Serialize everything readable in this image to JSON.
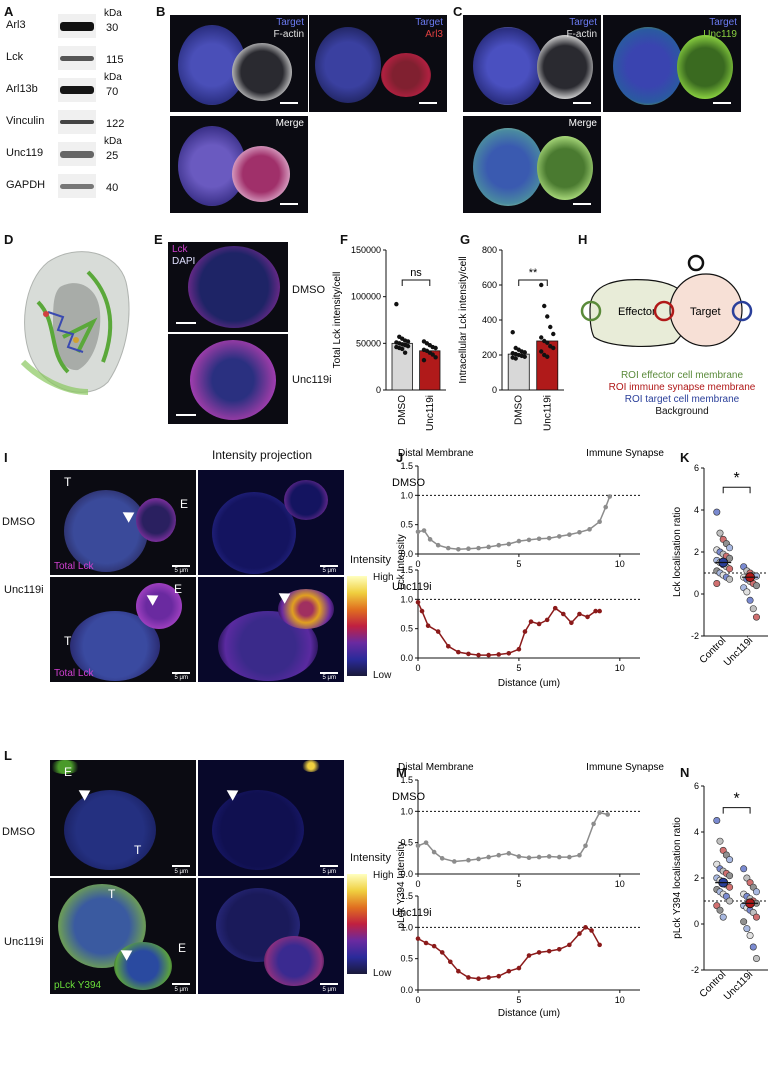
{
  "panels": {
    "A": "A",
    "B": "B",
    "C": "C",
    "D": "D",
    "E": "E",
    "F": "F",
    "G": "G",
    "H": "H",
    "I": "I",
    "J": "J",
    "K": "K",
    "L": "L",
    "M": "M",
    "N": "N"
  },
  "blot": {
    "rows": [
      {
        "label": "Arl3",
        "unit": "kDa",
        "kda": "30"
      },
      {
        "label": "Lck",
        "unit": "",
        "kda": "115"
      },
      {
        "label": "Arl13b",
        "unit": "kDa",
        "kda": "70"
      },
      {
        "label": "Vinculin",
        "unit": "",
        "kda": "122"
      },
      {
        "label": "Unc119",
        "unit": "kDa",
        "kda": "25"
      },
      {
        "label": "GAPDH",
        "unit": "",
        "kda": "40"
      }
    ]
  },
  "panelB": {
    "target": "Target",
    "factin": "F-actin",
    "arl3": "Arl3",
    "merge": "Merge"
  },
  "panelC": {
    "target": "Target",
    "factin": "F-actin",
    "unc119": "Unc119",
    "merge": "Merge"
  },
  "panelE": {
    "lck": "Lck",
    "dapi": "DAPI",
    "dmso": "DMSO",
    "unc": "Unc119i"
  },
  "panelH": {
    "effector": "Effector",
    "target": "Target",
    "legend": [
      {
        "text": "ROI effector cell membrane",
        "color": "#5a8a3a"
      },
      {
        "text": "ROI immune synapse membrane",
        "color": "#b01818"
      },
      {
        "text": "ROI target cell membrane",
        "color": "#2a3f9a"
      },
      {
        "text": "Background",
        "color": "#111111"
      }
    ]
  },
  "panelI": {
    "title": "Intensity projection",
    "dmso": "DMSO",
    "unc": "Unc119i",
    "T": "T",
    "E": "E",
    "totalLck": "Total Lck",
    "scale": "5 μm",
    "intensity": "Intensity",
    "high": "High",
    "low": "Low"
  },
  "panelL": {
    "dmso": "DMSO",
    "unc": "Unc119i",
    "T": "T",
    "E": "E",
    "plck": "pLck Y394",
    "scale": "5 μm",
    "intensity": "Intensity",
    "high": "High",
    "low": "Low"
  },
  "colors": {
    "dmso": "#8c8c8c",
    "unc": "#8b1a1a",
    "lck": "#c040c0",
    "plck": "#5fbf3a"
  },
  "chart_data": [
    {
      "panel": "F",
      "type": "bar",
      "categories": [
        "DMSO",
        "Unc119i"
      ],
      "values": [
        50000,
        42000
      ],
      "ylabel": "Total Lck intensity/cell",
      "ylim": [
        0,
        150000
      ],
      "yticks": [
        "0",
        "50000",
        "100000",
        "150000"
      ],
      "significance": "ns",
      "points": {
        "DMSO": [
          92000,
          57000,
          55000,
          53000,
          52000,
          51000,
          50000,
          49000,
          48000,
          47000,
          46000,
          45000,
          44000,
          40000
        ],
        "Unc119i": [
          52000,
          50000,
          48000,
          46000,
          45000,
          43000,
          42000,
          40000,
          38000,
          35000,
          32000
        ]
      }
    },
    {
      "panel": "G",
      "type": "bar",
      "categories": [
        "DMSO",
        "Unc119i"
      ],
      "values": [
        205,
        280
      ],
      "ylabel": "Intracellular Lck intensity/cell",
      "ylim": [
        0,
        800
      ],
      "yticks": [
        "0",
        "200",
        "400",
        "600",
        "800"
      ],
      "significance": "**",
      "points": {
        "DMSO": [
          330,
          240,
          230,
          220,
          215,
          210,
          205,
          200,
          195,
          190,
          185,
          180
        ],
        "Unc119i": [
          600,
          480,
          420,
          360,
          320,
          300,
          280,
          270,
          250,
          240,
          220,
          200,
          190
        ]
      }
    },
    {
      "panel": "J",
      "type": "line",
      "header": [
        "Distal Membrane",
        "Immune Synapse"
      ],
      "xlabel": "Distance (um)",
      "ylabel": "Lck Intensity",
      "xlim": [
        0,
        11
      ],
      "xticks": [
        "0",
        "5",
        "10"
      ],
      "reference_line": 1.0,
      "series": [
        {
          "name": "DMSO",
          "ylim": [
            0,
            1.5
          ],
          "yticks": [
            "0.0",
            "0.5",
            "1.0",
            "1.5"
          ],
          "x": [
            0,
            0.3,
            0.6,
            1,
            1.5,
            2,
            2.5,
            3,
            3.5,
            4,
            4.5,
            5,
            5.5,
            6,
            6.5,
            7,
            7.5,
            8,
            8.5,
            9,
            9.3,
            9.5
          ],
          "y": [
            0.38,
            0.4,
            0.25,
            0.15,
            0.1,
            0.08,
            0.09,
            0.1,
            0.12,
            0.15,
            0.17,
            0.22,
            0.24,
            0.26,
            0.27,
            0.3,
            0.33,
            0.37,
            0.42,
            0.55,
            0.8,
            0.98
          ]
        },
        {
          "name": "Unc119i",
          "ylim": [
            0,
            1.5
          ],
          "yticks": [
            "0.0",
            "0.5",
            "1.0",
            "1.5"
          ],
          "x": [
            0,
            0.2,
            0.5,
            1,
            1.5,
            2,
            2.5,
            3,
            3.5,
            4,
            4.5,
            5,
            5.3,
            5.6,
            6,
            6.4,
            6.8,
            7.2,
            7.6,
            8,
            8.4,
            8.8,
            9
          ],
          "y": [
            0.95,
            0.8,
            0.55,
            0.45,
            0.2,
            0.1,
            0.07,
            0.05,
            0.05,
            0.06,
            0.08,
            0.15,
            0.45,
            0.62,
            0.58,
            0.65,
            0.85,
            0.75,
            0.6,
            0.75,
            0.7,
            0.8,
            0.8
          ]
        }
      ]
    },
    {
      "panel": "K",
      "type": "scatter",
      "categories": [
        "Control",
        "Unc119i"
      ],
      "ylabel": "Lck localisation ratio",
      "ylim": [
        -2,
        6
      ],
      "yticks": [
        "-2",
        "0",
        "2",
        "4",
        "6"
      ],
      "reference_line": 1.0,
      "significance": "*",
      "points": {
        "Control": [
          3.9,
          2.9,
          2.6,
          2.4,
          2.2,
          2.1,
          2.0,
          1.9,
          1.8,
          1.7,
          1.6,
          1.5,
          1.4,
          1.3,
          1.2,
          1.1,
          1.0,
          0.9,
          0.8,
          0.7,
          0.5
        ],
        "Unc119i": [
          1.3,
          1.1,
          1.0,
          0.9,
          0.85,
          0.8,
          0.7,
          0.6,
          0.5,
          0.4,
          0.3,
          0.1,
          -0.3,
          -0.7,
          -1.1
        ]
      },
      "means": {
        "Control": 1.5,
        "Unc119i": 0.8
      }
    },
    {
      "panel": "M",
      "type": "line",
      "header": [
        "Distal Membrane",
        "Immune Synapse"
      ],
      "xlabel": "Distance (um)",
      "ylabel": "pLck Y394 Intensity",
      "xlim": [
        0,
        11
      ],
      "xticks": [
        "0",
        "5",
        "10"
      ],
      "reference_line": 1.0,
      "series": [
        {
          "name": "DMSO",
          "ylim": [
            0,
            1.5
          ],
          "yticks": [
            "0.0",
            "0.5",
            "1.0",
            "1.5"
          ],
          "x": [
            0,
            0.4,
            0.8,
            1.2,
            1.8,
            2.5,
            3,
            3.5,
            4,
            4.5,
            5,
            5.5,
            6,
            6.5,
            7,
            7.5,
            8,
            8.3,
            8.7,
            9,
            9.4
          ],
          "y": [
            0.45,
            0.5,
            0.35,
            0.25,
            0.2,
            0.22,
            0.24,
            0.27,
            0.3,
            0.33,
            0.28,
            0.26,
            0.27,
            0.28,
            0.27,
            0.27,
            0.3,
            0.45,
            0.8,
            0.98,
            0.95
          ]
        },
        {
          "name": "Unc119i",
          "ylim": [
            0,
            1.5
          ],
          "yticks": [
            "0.0",
            "0.5",
            "1.0",
            "1.5"
          ],
          "x": [
            0,
            0.4,
            0.8,
            1.2,
            1.6,
            2,
            2.5,
            3,
            3.5,
            4,
            4.5,
            5,
            5.5,
            6,
            6.5,
            7,
            7.5,
            8,
            8.3,
            8.6,
            9
          ],
          "y": [
            0.82,
            0.75,
            0.7,
            0.6,
            0.45,
            0.3,
            0.2,
            0.18,
            0.2,
            0.22,
            0.3,
            0.35,
            0.55,
            0.6,
            0.62,
            0.65,
            0.72,
            0.9,
            1.0,
            0.95,
            0.72
          ]
        }
      ]
    },
    {
      "panel": "N",
      "type": "scatter",
      "categories": [
        "Control",
        "Unc119i"
      ],
      "ylabel": "pLck Y394 localisation ratio",
      "ylim": [
        -2,
        6
      ],
      "yticks": [
        "-2",
        "0",
        "2",
        "4",
        "6"
      ],
      "reference_line": 1.0,
      "significance": "*",
      "points": {
        "Control": [
          4.5,
          3.6,
          3.2,
          3.0,
          2.8,
          2.6,
          2.4,
          2.3,
          2.2,
          2.1,
          2.0,
          1.9,
          1.8,
          1.7,
          1.6,
          1.5,
          1.4,
          1.3,
          1.2,
          1.0,
          0.8,
          0.6,
          0.3
        ],
        "Unc119i": [
          2.4,
          2.0,
          1.8,
          1.6,
          1.4,
          1.3,
          1.2,
          1.1,
          1.0,
          0.9,
          0.8,
          0.7,
          0.6,
          0.5,
          0.3,
          0.1,
          -0.2,
          -0.5,
          -1.0,
          -1.5
        ]
      },
      "means": {
        "Control": 1.8,
        "Unc119i": 0.9
      }
    }
  ]
}
